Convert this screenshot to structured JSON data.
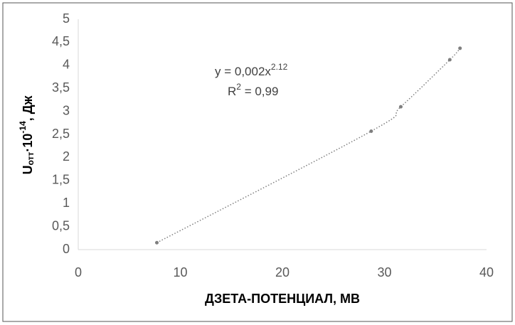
{
  "chart_data": {
    "type": "scatter",
    "x_label": "ДЗЕТА-ПОТЕНЦИАЛ, МВ",
    "y_label": {
      "main": "U",
      "sub": "отт",
      "mid": "·10",
      "sup": "-14",
      "end": ", Дж"
    },
    "equation": {
      "text": "y = 0,002x",
      "sup": "2.12"
    },
    "r_squared": {
      "text": "R",
      "sup": "2",
      "rest": " = 0,99"
    },
    "series": [
      {
        "color": "#7f7f7f",
        "x": [
          7.7,
          28.7,
          31.6,
          36.4,
          37.4
        ],
        "values": [
          0.15,
          2.57,
          3.1,
          4.12,
          4.37
        ]
      }
    ],
    "trendline": {
      "style": "dotted",
      "color": "#7f7f7f"
    },
    "xlim": [
      0,
      40
    ],
    "xticks": [
      0,
      10,
      20,
      30,
      40
    ],
    "ylim": [
      0,
      5
    ],
    "yticks": [
      0,
      {
        "value": 0.5,
        "label": "0,5"
      },
      1,
      {
        "value": 1.5,
        "label": "1,5"
      },
      2,
      {
        "value": 2.5,
        "label": "2,5"
      },
      3,
      {
        "value": 3.5,
        "label": "3,5"
      },
      4,
      {
        "value": 4.5,
        "label": "4,5"
      },
      5
    ],
    "grid": false
  }
}
